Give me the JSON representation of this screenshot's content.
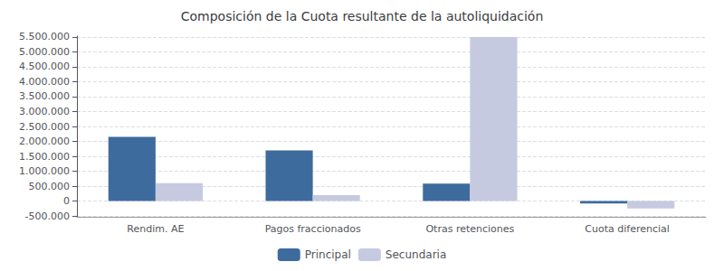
{
  "chart_data": {
    "type": "bar",
    "title": "Composición de la Cuota resultante de la autoliquidación",
    "categories": [
      "Rendim. AE",
      "Pagos fraccionados",
      "Otras retenciones",
      "Cuota diferencial"
    ],
    "series": [
      {
        "name": "Principal",
        "color": "#3D6B9E",
        "values": [
          2150000,
          1700000,
          580000,
          -80000
        ]
      },
      {
        "name": "Secundaria",
        "color": "#C5CAE0",
        "values": [
          600000,
          200000,
          5500000,
          -250000
        ]
      }
    ],
    "ylim": [
      -530000,
      5530000
    ],
    "yticks": [
      {
        "value": -500000,
        "label": "-500.000"
      },
      0,
      {
        "value": 500000,
        "label": "500.000"
      },
      {
        "value": 1000000,
        "label": "1.000.000"
      },
      {
        "value": 1500000,
        "label": "1.500.000"
      },
      {
        "value": 2000000,
        "label": "2.000.000"
      },
      {
        "value": 2500000,
        "label": "2.500.000"
      },
      {
        "value": 3000000,
        "label": "3.000.000"
      },
      {
        "value": 3500000,
        "label": "3.500.000"
      },
      {
        "value": 4000000,
        "label": "4.000.000"
      },
      {
        "value": 4500000,
        "label": "4.500.000"
      },
      {
        "value": 5000000,
        "label": "5.000.000"
      },
      {
        "value": 5500000,
        "label": "5.500.000"
      }
    ],
    "grid": true,
    "legend": "bottom"
  }
}
